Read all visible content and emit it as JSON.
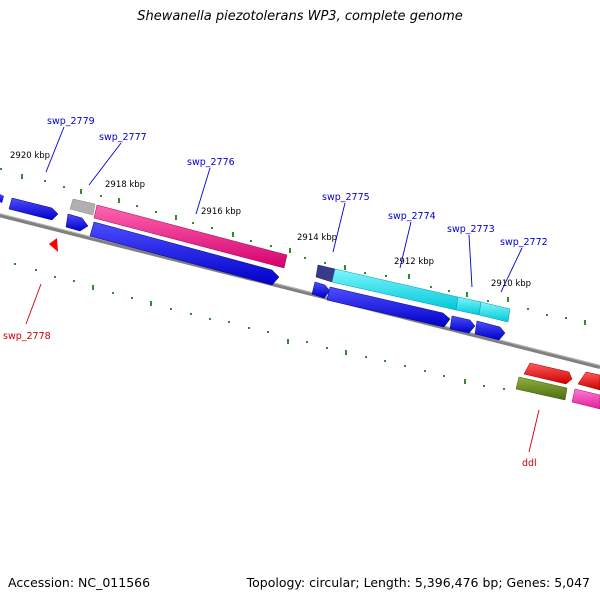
{
  "title": "Shewanella piezotolerans WP3, complete genome",
  "footer": {
    "accession": "Accession: NC_011566",
    "summary": "Topology: circular; Length: 5,396,476 bp; Genes: 5,047"
  },
  "ticks": [
    "2920 kbp",
    "2918 kbp",
    "2916 kbp",
    "2914 kbp",
    "2912 kbp",
    "2910 kbp"
  ],
  "gene_labels": {
    "swp_2779": "swp_2779",
    "swp_2777": "swp_2777",
    "swp_2776": "swp_2776",
    "swp_2775": "swp_2775",
    "swp_2774": "swp_2774",
    "swp_2773": "swp_2773",
    "swp_2772": "swp_2772",
    "swp_2778": "swp_2778",
    "ddl": "ddl"
  },
  "colors": {
    "backbone": "#808080",
    "tick": "#2e8b2e",
    "gene_blue": "#0000ff",
    "gene_magenta": "#ff1493",
    "gene_cyan": "#00e5ee",
    "gene_gray": "#b0b0b0",
    "gene_navy": "#3a3a8a",
    "gene_red": "#ff0000",
    "gene_olive": "#6b8e23",
    "label_forward": "#0000cc",
    "label_reverse": "#cc0000"
  }
}
